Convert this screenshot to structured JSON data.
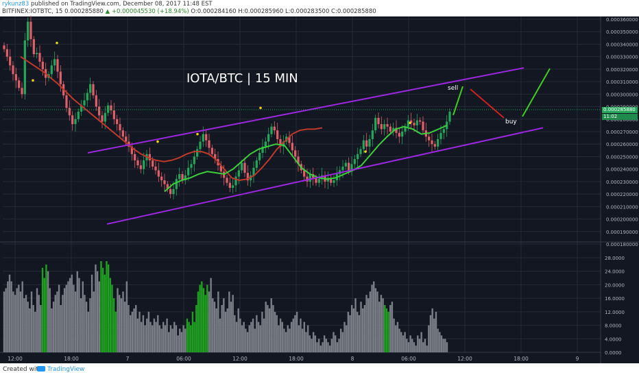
{
  "header": {
    "author": "rykunz83",
    "published": "published on TradingView.com, December 08, 2017 11:48 EST",
    "symbol": "BITFINEX:IOTBTC, 15",
    "last": "0.000285880",
    "change": "▲ +0.000045530 (+18.94%)",
    "ohlc": "O:0.000284160 H:0.000285960 L:0.000283500 C:0.000285880"
  },
  "footer": {
    "created_with": "Created with",
    "brand": "TradingView"
  },
  "overlay": {
    "title": "IOTA/BTC | 15 MIN",
    "sell": "sell",
    "buy": "buy"
  },
  "colors": {
    "background": "#131722",
    "grid": "#262a36",
    "up": "#26a65b",
    "down": "#e0606a",
    "volume_neutral": "#7a7e87",
    "volume_highlight": "#20a020",
    "ma_red": "#c0392b",
    "ma_green": "#3ccf3c",
    "channel": "#9c27e0",
    "arrow_green": "#3ecf1e",
    "arrow_red": "#d02020",
    "dot": "#f0d020"
  },
  "price_tags": {
    "last_price": "0.000285880",
    "countdown": "11:02"
  },
  "chart_data": [
    {
      "type": "candlestick",
      "title": "",
      "ylim": [
        0.00018,
        0.00036
      ],
      "y_ticks": [
        "0.000360000",
        "0.000350000",
        "0.000340000",
        "0.000330000",
        "0.000320000",
        "0.000310000",
        "0.000300000",
        "0.000290000",
        "0.000280000",
        "0.000270000",
        "0.000260000",
        "0.000250000",
        "0.000240000",
        "0.000230000",
        "0.000220000",
        "0.000210000",
        "0.000200000",
        "0.000190000",
        "0.000180000"
      ],
      "x_ticks": [
        "12:00",
        "18:00",
        "7",
        "06:00",
        "12:00",
        "18:00",
        "8",
        "06:00",
        "12:00",
        "18:00",
        "9"
      ],
      "close_series": [
        0.000336,
        0.00033,
        0.000323,
        0.000316,
        0.000311,
        0.000305,
        0.0003,
        0.000343,
        0.000358,
        0.000344,
        0.000332,
        0.000333,
        0.000326,
        0.00032,
        0.000313,
        0.000316,
        0.000323,
        0.000328,
        0.000318,
        0.000308,
        0.000299,
        0.000289,
        0.000283,
        0.000276,
        0.00028,
        0.000286,
        0.000291,
        0.000295,
        0.000301,
        0.000308,
        0.000299,
        0.00029,
        0.000283,
        0.000278,
        0.000285,
        0.000291,
        0.000287,
        0.00028,
        0.000276,
        0.000271,
        0.000266,
        0.000262,
        0.000258,
        0.000252,
        0.000247,
        0.000243,
        0.00024,
        0.000247,
        0.000252,
        0.000247,
        0.000242,
        0.000239,
        0.000234,
        0.000231,
        0.000228,
        0.000224,
        0.00022,
        0.000224,
        0.000232,
        0.000236,
        0.000231,
        0.000235,
        0.000241,
        0.000244,
        0.00025,
        0.000256,
        0.000262,
        0.000268,
        0.000263,
        0.000257,
        0.000252,
        0.000248,
        0.000243,
        0.000238,
        0.000233,
        0.000229,
        0.000225,
        0.000227,
        0.000234,
        0.000239,
        0.000245,
        0.000237,
        0.000231,
        0.000235,
        0.000241,
        0.000247,
        0.000253,
        0.000258,
        0.000262,
        0.000268,
        0.000274,
        0.000271,
        0.000264,
        0.000258,
        0.000262,
        0.000266,
        0.000261,
        0.000255,
        0.00025,
        0.000244,
        0.000239,
        0.000234,
        0.00023,
        0.000236,
        0.000233,
        0.000229,
        0.000232,
        0.000235,
        0.00023,
        0.000233,
        0.000229,
        0.000231,
        0.000236,
        0.000239,
        0.000242,
        0.000245,
        0.000239,
        0.000244,
        0.000248,
        0.000252,
        0.000256,
        0.000263,
        0.000258,
        0.000264,
        0.000271,
        0.000281,
        0.000276,
        0.000272,
        0.000276,
        0.000274,
        0.00027,
        0.000273,
        0.000269,
        0.000266,
        0.00027,
        0.000274,
        0.000279,
        0.000277,
        0.000275,
        0.000279,
        0.000278,
        0.000271,
        0.000266,
        0.000263,
        0.00026,
        0.000258,
        0.000264,
        0.000269,
        0.000272,
        0.000278,
        0.000286
      ],
      "moving_averages": [
        {
          "color": "red",
          "values": [
            0.00033,
            0.000326,
            0.000322,
            0.000318,
            0.000313,
            0.000308,
            0.000302,
            0.000296,
            0.000291,
            0.000286,
            0.000281,
            0.000276,
            0.000271,
            0.000266,
            0.000261,
            0.000256,
            0.000252,
            0.000249,
            0.000247,
            0.000246,
            0.000247,
            0.000249,
            0.000252,
            0.000254,
            0.000254,
            0.000252,
            0.000247,
            0.00024,
            0.000233,
            0.000231,
            0.000232,
            0.000235,
            0.000241,
            0.000248,
            0.000256,
            0.000262,
            0.000268,
            0.000271,
            0.000272,
            0.000272,
            0.000273
          ]
        },
        {
          "color": "green",
          "values": [
            0.000222,
            0.000228,
            0.000231,
            0.000233,
            0.000236,
            0.000238,
            0.000237,
            0.000236,
            0.00024,
            0.000246,
            0.000252,
            0.000256,
            0.000258,
            0.00026,
            0.000259,
            0.00025,
            0.000241,
            0.000236,
            0.000233,
            0.000232,
            0.000233,
            0.000236,
            0.000239,
            0.000243,
            0.000251,
            0.000259,
            0.000266,
            0.000272,
            0.000274,
            0.000272,
            0.000268,
            0.000269,
            0.000272,
            0.000275
          ]
        }
      ],
      "channel": {
        "upper": [
          0.000253,
          0.000321
        ],
        "lower": [
          0.000196,
          0.000273
        ]
      },
      "projection": [
        "0.000305",
        "0.000273",
        "0.000321"
      ]
    },
    {
      "type": "bar",
      "title": "",
      "ylim": [
        0,
        28
      ],
      "y_ticks": [
        "28.0000",
        "24.0000",
        "20.0000",
        "16.0000",
        "12.0000",
        "8.0000",
        "4.0000",
        "0.0000"
      ],
      "values": [
        18,
        19,
        21,
        23,
        21,
        18,
        17,
        19,
        20,
        18,
        21,
        16,
        17,
        15,
        13,
        18,
        14,
        12,
        19,
        17,
        14,
        25,
        22,
        26,
        24,
        19,
        13,
        15,
        17,
        18,
        20,
        14,
        17,
        19,
        20,
        21,
        22,
        23,
        20,
        18,
        24,
        22,
        16,
        21,
        17,
        15,
        12,
        16,
        23,
        18,
        26,
        24,
        21,
        27,
        25,
        23,
        27,
        26,
        22,
        20,
        16,
        12,
        19,
        17,
        16,
        18,
        15,
        21,
        14,
        11,
        12,
        13,
        14,
        10,
        12,
        9,
        11,
        8,
        10,
        12,
        9,
        8,
        10,
        9,
        11,
        8,
        7,
        9,
        8,
        10,
        6,
        8,
        7,
        9,
        8,
        5,
        7,
        6,
        8,
        7,
        10,
        9,
        8,
        12,
        9,
        14,
        18,
        20,
        21,
        19,
        17,
        20,
        18,
        22,
        16,
        15,
        13,
        18,
        10,
        14,
        16,
        12,
        13,
        18,
        15,
        17,
        11,
        9,
        13,
        10,
        8,
        9,
        7,
        6,
        8,
        9,
        10,
        7,
        11,
        9,
        8,
        12,
        10,
        15,
        14,
        13,
        16,
        14,
        12,
        11,
        8,
        10,
        9,
        7,
        6,
        8,
        7,
        9,
        10,
        11,
        12,
        8,
        10,
        7,
        9,
        6,
        8,
        5,
        4,
        6,
        5,
        3,
        4,
        2,
        3,
        5,
        4,
        3,
        2,
        4,
        6,
        5,
        3,
        4,
        7,
        6,
        9,
        8,
        12,
        11,
        14,
        13,
        16,
        12,
        11,
        15,
        13,
        14,
        17,
        16,
        18,
        20,
        21,
        19,
        18,
        15,
        17,
        16,
        14,
        13,
        12,
        14,
        15,
        10,
        8,
        9,
        7,
        6,
        5,
        6,
        4,
        3,
        5,
        4,
        3,
        2,
        5,
        4,
        6,
        3,
        4,
        2,
        8,
        11,
        13,
        10,
        12,
        7,
        6,
        5,
        4,
        4,
        3
      ],
      "highlighted_indices": [
        21,
        22,
        23,
        53,
        54,
        55,
        56,
        57,
        58,
        59,
        60,
        61,
        100,
        101,
        102,
        103,
        104,
        105,
        106,
        107,
        108,
        109,
        110,
        111,
        208,
        209,
        210
      ]
    }
  ]
}
